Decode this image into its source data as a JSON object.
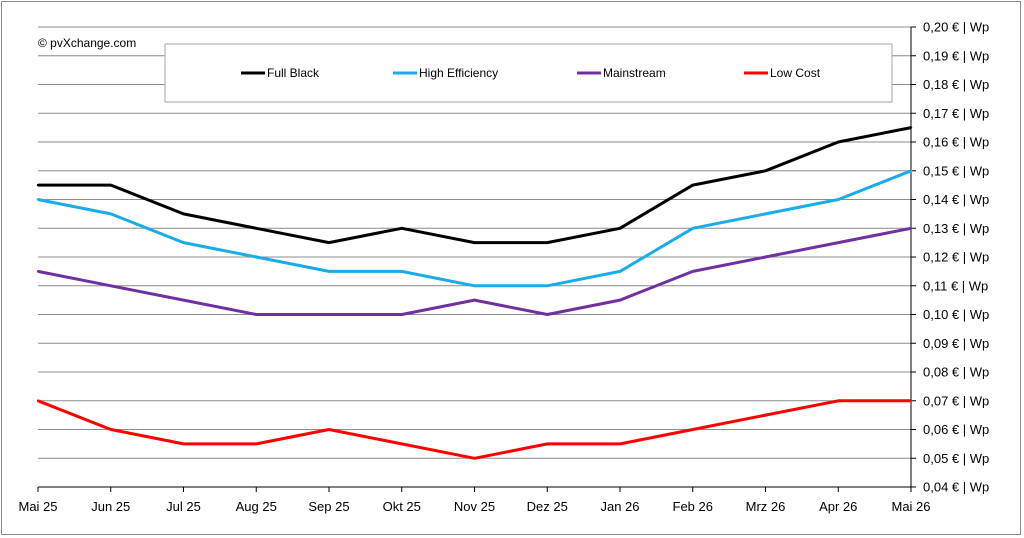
{
  "chart_data": {
    "type": "line",
    "credit": "© pvXchange.com",
    "categories": [
      "Mai 25",
      "Jun 25",
      "Jul 25",
      "Aug 25",
      "Sep 25",
      "Okt 25",
      "Nov 25",
      "Dez 25",
      "Jan 26",
      "Feb 26",
      "Mrz 26",
      "Apr 26",
      "Mai 26"
    ],
    "ylim": [
      0.04,
      0.2
    ],
    "ytick_step": 0.01,
    "y_tick_labels": [
      "0,04 € | Wp",
      "0,05 € | Wp",
      "0,06 € | Wp",
      "0,07 € | Wp",
      "0,08 € | Wp",
      "0,09 € | Wp",
      "0,10 € | Wp",
      "0,11 € | Wp",
      "0,12 € | Wp",
      "0,13 € | Wp",
      "0,14 € | Wp",
      "0,15 € | Wp",
      "0,16 € | Wp",
      "0,17 € | Wp",
      "0,18 € | Wp",
      "0,19 € | Wp",
      "0,20 € | Wp"
    ],
    "y_axis_side": "right",
    "grid": true,
    "legend_position": "top",
    "series": [
      {
        "name": "Full Black",
        "color": "#000000",
        "values": [
          0.145,
          0.145,
          0.135,
          0.13,
          0.125,
          0.13,
          0.125,
          0.125,
          0.13,
          0.145,
          0.15,
          0.16,
          0.165
        ]
      },
      {
        "name": "High Efficiency",
        "color": "#1aace8",
        "values": [
          0.14,
          0.135,
          0.125,
          0.12,
          0.115,
          0.115,
          0.11,
          0.11,
          0.115,
          0.13,
          0.135,
          0.14,
          0.15
        ]
      },
      {
        "name": "Mainstream",
        "color": "#7030a0",
        "values": [
          0.115,
          0.11,
          0.105,
          0.1,
          0.1,
          0.1,
          0.105,
          0.1,
          0.105,
          0.115,
          0.12,
          0.125,
          0.13
        ]
      },
      {
        "name": "Low Cost",
        "color": "#ff0000",
        "values": [
          0.07,
          0.06,
          0.055,
          0.055,
          0.06,
          0.055,
          0.05,
          0.055,
          0.055,
          0.06,
          0.065,
          0.07,
          0.07
        ]
      }
    ]
  }
}
